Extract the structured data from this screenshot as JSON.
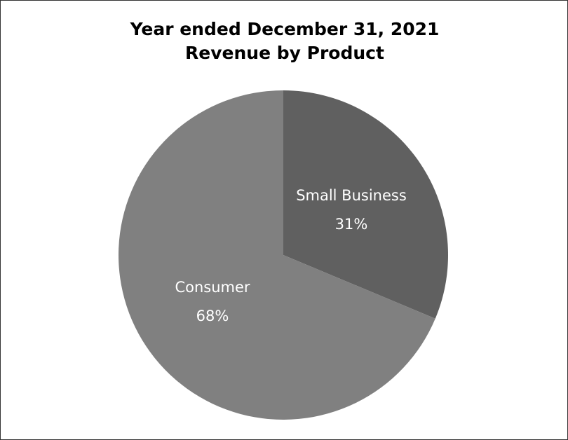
{
  "chart_data": {
    "type": "pie",
    "title": "Year ended December 31, 2021",
    "subtitle": "Revenue by Product",
    "categories": [
      "Small Business",
      "Consumer"
    ],
    "values": [
      31,
      68
    ],
    "value_labels": [
      "31%",
      "68%"
    ],
    "colors": [
      "#606060",
      "#808080"
    ]
  }
}
